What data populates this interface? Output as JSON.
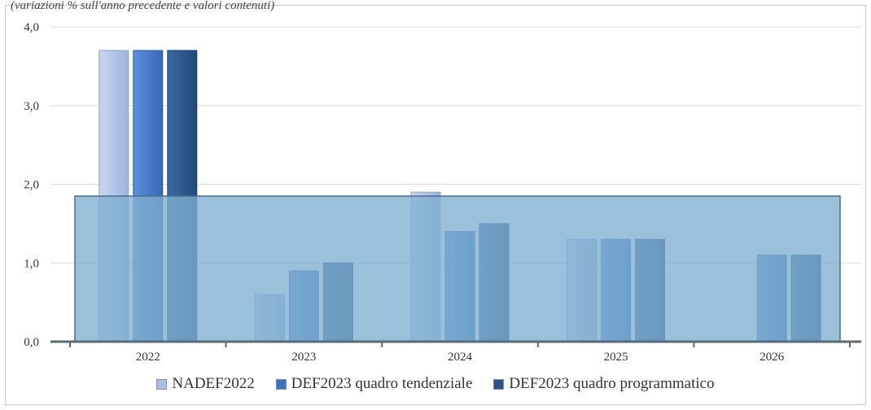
{
  "subtitle": "(variazioni % sull'anno precedente e valori contenuti)",
  "chart_data": {
    "type": "bar",
    "categories": [
      "2022",
      "2023",
      "2024",
      "2025",
      "2026"
    ],
    "series": [
      {
        "name": "NADEF2022",
        "values": [
          3.7,
          0.6,
          1.9,
          1.3,
          null
        ],
        "color": "#b4c5e4"
      },
      {
        "name": "DEF2023 quadro tendenziale",
        "values": [
          3.7,
          0.9,
          1.4,
          1.3,
          1.1
        ],
        "color": "#4a7cc9"
      },
      {
        "name": "DEF2023 quadro programmatico",
        "values": [
          3.7,
          1.0,
          1.5,
          1.3,
          1.1
        ],
        "color": "#2e5a93"
      }
    ],
    "ylim": [
      0,
      4
    ],
    "yticks": [
      "0,0",
      "1,0",
      "2,0",
      "3,0",
      "4,0"
    ],
    "yticks_values": [
      0,
      1,
      2,
      3,
      4
    ],
    "band_value": 1.85,
    "band_color": "#7fb0d0",
    "grid": true,
    "legend_position": "bottom"
  }
}
